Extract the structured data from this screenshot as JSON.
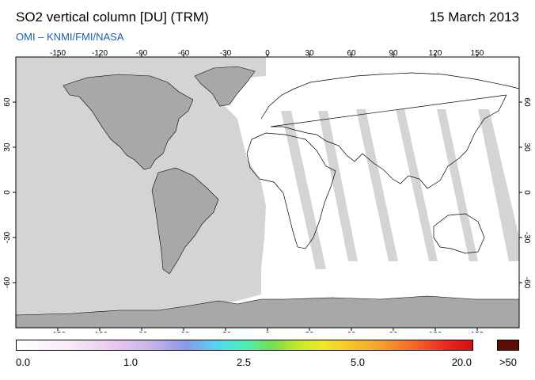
{
  "header": {
    "title": "SO2 vertical column [DU] (TRM)",
    "date": "15 March 2013",
    "credit": "OMI  –  KNMI/FMI/NASA"
  },
  "map": {
    "projection": "equirectangular",
    "lon_range": [
      -180,
      180
    ],
    "lat_range": [
      -90,
      90
    ],
    "lon_ticks": [
      -150,
      -120,
      -90,
      -60,
      -30,
      0,
      30,
      60,
      90,
      120,
      150
    ],
    "lat_ticks": [
      60,
      30,
      0,
      -30,
      -60
    ],
    "land_color": "#a8a8a8",
    "no_data_color": "#d4d4d4",
    "data_background_color": "#ffffff"
  },
  "colorbar": {
    "labels": [
      "0.0",
      "1.0",
      "2.5",
      "5.0",
      "20.0"
    ],
    "overflow_label": ">50",
    "overflow_color": "#5e0c06",
    "colors": [
      "#ffffff",
      "#e6c6ee",
      "#8a98e8",
      "#52d6f2",
      "#72e04a",
      "#f2e628",
      "#f89e2c",
      "#ec2a1e",
      "#d40e10"
    ]
  }
}
